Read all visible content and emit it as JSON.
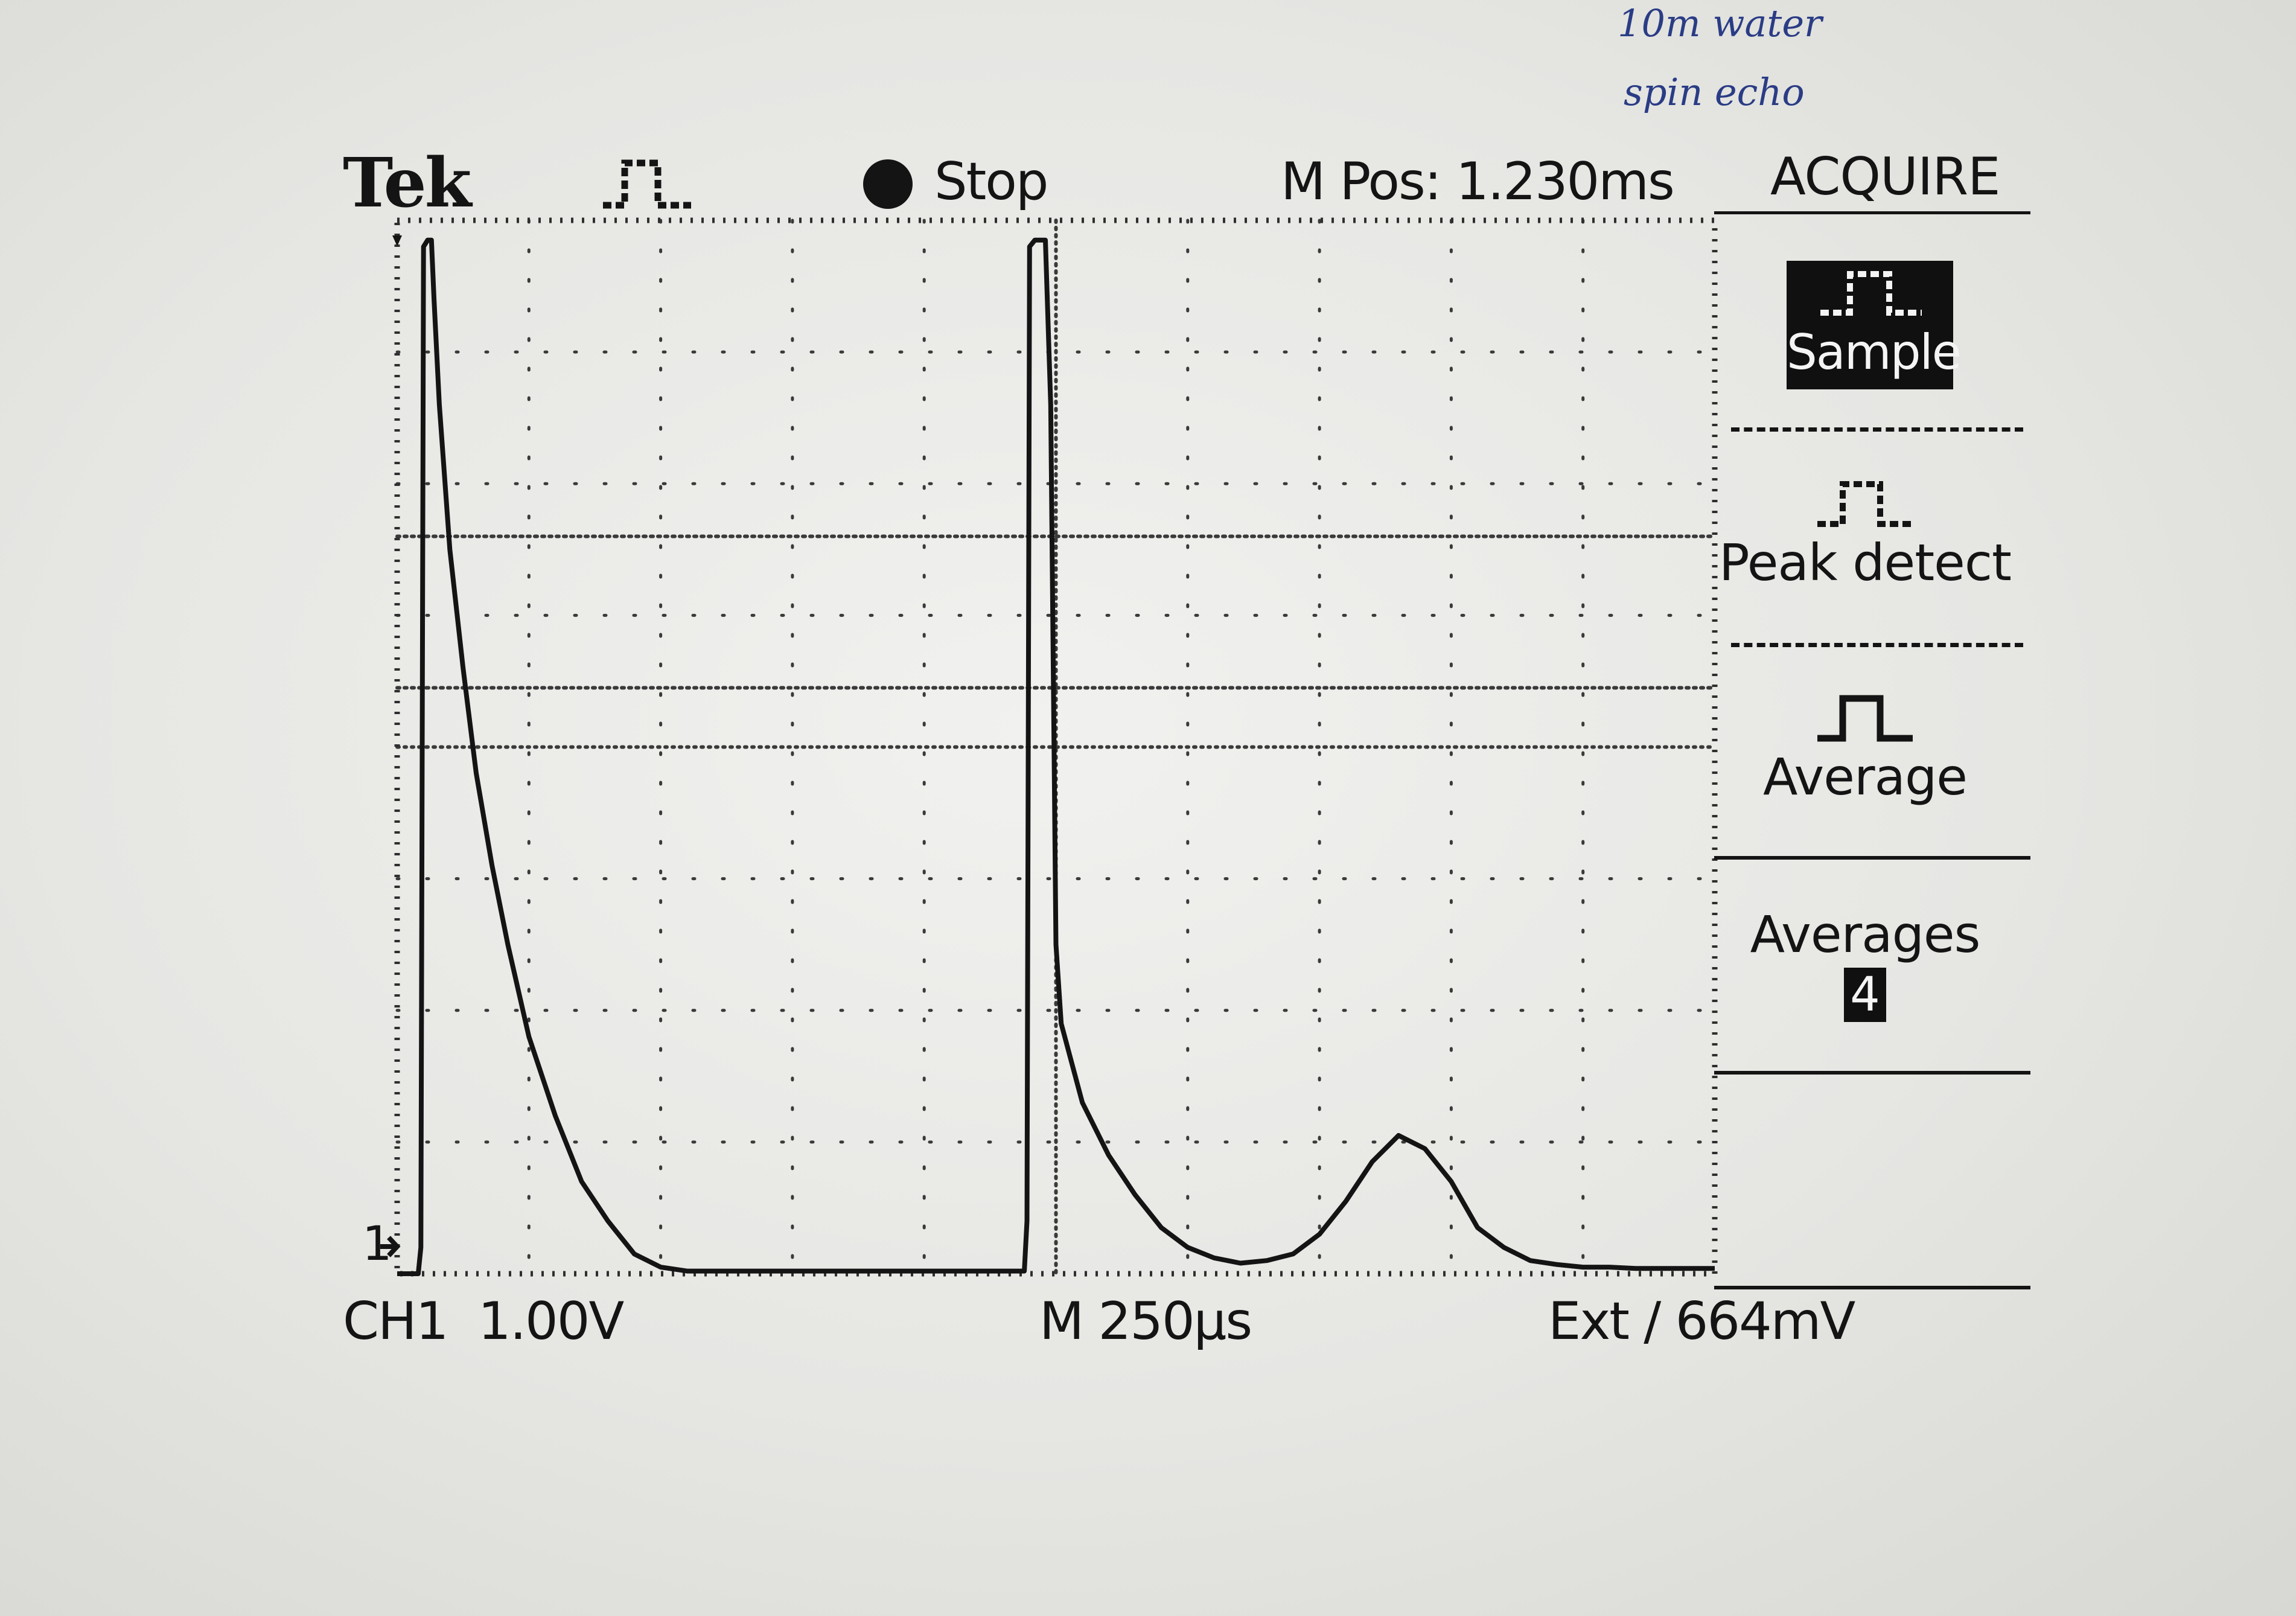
{
  "annotations": [
    "10m water",
    "spin echo"
  ],
  "status_bar": {
    "brand": "Tek",
    "acq_state": "Stop",
    "horizontal_position": "M Pos: 1.230ms"
  },
  "acquire_menu": {
    "title": "ACQUIRE",
    "items": [
      {
        "label": "Sample",
        "selected": true
      },
      {
        "label": "Peak detect",
        "selected": false
      },
      {
        "label": "Average",
        "selected": false
      }
    ],
    "averages": {
      "label": "Averages",
      "value": "4"
    }
  },
  "bottom_bar": {
    "channel": "CH1",
    "volts_per_div": "1.00V",
    "timebase": "M 250µs",
    "trigger": "Ext ∕ 664mV"
  },
  "channel_marker": "1",
  "icons": {
    "acquire_mode": "pulse-icon",
    "run_state": "stop-dot-icon",
    "peak_detect": "pulse-noise-icon",
    "average": "pulse-clean-icon",
    "ground": "ground-arrow-icon"
  },
  "colors": {
    "screen": "#e3e3e0",
    "trace": "#141414",
    "annotation_ink": "#2a3c85",
    "highlight": "#101010"
  },
  "chart_data": {
    "type": "line",
    "title": "",
    "xlabel": "",
    "ylabel": "",
    "x_unit": "µs",
    "y_unit": "V",
    "xlim": [
      0,
      2500
    ],
    "ylim": [
      0,
      8
    ],
    "grid": true,
    "series": [
      {
        "name": "",
        "x": [
          0,
          40,
          45,
          50,
          58,
          65,
          70,
          80,
          100,
          125,
          150,
          180,
          210,
          250,
          300,
          350,
          400,
          450,
          500,
          550,
          600,
          650,
          700,
          750,
          800,
          850,
          900,
          950,
          1000,
          1050,
          1100,
          1150,
          1190,
          1195,
          1200,
          1210,
          1220,
          1230,
          1240,
          1250,
          1260,
          1280,
          1300,
          1350,
          1400,
          1450,
          1500,
          1550,
          1600,
          1650,
          1700,
          1750,
          1800,
          1850,
          1900,
          1950,
          2000,
          2050,
          2100,
          2150,
          2200,
          2250,
          2300,
          2350,
          2400,
          2450,
          2500
        ],
        "y": [
          0,
          0,
          0.2,
          7.8,
          7.85,
          7.85,
          7.4,
          6.6,
          5.5,
          4.6,
          3.8,
          3.1,
          2.5,
          1.8,
          1.2,
          0.7,
          0.4,
          0.15,
          0.05,
          0.02,
          0.02,
          0.02,
          0.02,
          0.02,
          0.02,
          0.02,
          0.02,
          0.02,
          0.02,
          0.02,
          0.02,
          0.02,
          0.02,
          0.4,
          7.8,
          7.85,
          7.85,
          7.85,
          6.6,
          2.5,
          1.9,
          1.6,
          1.3,
          0.9,
          0.6,
          0.35,
          0.2,
          0.12,
          0.08,
          0.1,
          0.15,
          0.3,
          0.55,
          0.85,
          1.05,
          0.95,
          0.7,
          0.35,
          0.2,
          0.1,
          0.07,
          0.05,
          0.05,
          0.04,
          0.04,
          0.04,
          0.04
        ]
      }
    ]
  }
}
